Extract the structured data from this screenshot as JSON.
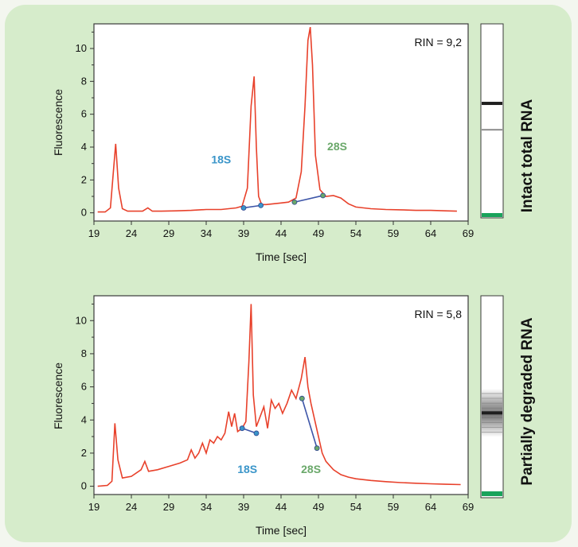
{
  "chart_data": [
    {
      "type": "line",
      "rin_label": "RIN = 9,2",
      "side_label": "Intact total RNA",
      "xlabel": "Time [sec]",
      "ylabel": "Fluorescence",
      "xlim": [
        19,
        69
      ],
      "ylim": [
        -0.5,
        11.5
      ],
      "xticks": [
        19,
        24,
        29,
        34,
        39,
        44,
        49,
        54,
        59,
        64,
        69
      ],
      "yticks": [
        0,
        2,
        4,
        6,
        8,
        10
      ],
      "line_color": "#e8412b",
      "series": [
        {
          "x": [
            19.5,
            20.5,
            21.2,
            21.6,
            21.9,
            22.3,
            22.8,
            23.5,
            24.5,
            25.5,
            26.2,
            26.8,
            28,
            30,
            32,
            34,
            36,
            37,
            38,
            38.8,
            39.5,
            40,
            40.4,
            40.7,
            41,
            41.4,
            42,
            43,
            44,
            45,
            46,
            46.7,
            47.2,
            47.6,
            47.9,
            48.2,
            48.6,
            49.2,
            50,
            51,
            52,
            53,
            54,
            56,
            58,
            60,
            62,
            64,
            66,
            67.5
          ],
          "y": [
            0.05,
            0.05,
            0.3,
            2.5,
            4.2,
            1.5,
            0.25,
            0.1,
            0.1,
            0.1,
            0.3,
            0.1,
            0.1,
            0.12,
            0.15,
            0.2,
            0.2,
            0.25,
            0.3,
            0.4,
            1.5,
            6.5,
            8.3,
            4,
            1,
            0.5,
            0.5,
            0.55,
            0.6,
            0.65,
            0.9,
            2.5,
            6.5,
            10.5,
            11.3,
            9,
            3.5,
            1.4,
            1,
            1.05,
            0.9,
            0.55,
            0.35,
            0.25,
            0.2,
            0.18,
            0.15,
            0.15,
            0.12,
            0.1
          ]
        }
      ],
      "markers": [
        {
          "label": "18S",
          "points": [
            {
              "x": 39.0,
              "y": 0.3
            },
            {
              "x": 41.3,
              "y": 0.45
            }
          ],
          "label_at": {
            "x": 36.0,
            "y": 3.0
          },
          "color": "#3a95c9"
        },
        {
          "label": "28S",
          "points": [
            {
              "x": 45.8,
              "y": 0.65
            },
            {
              "x": 49.6,
              "y": 1.05
            }
          ],
          "label_at": {
            "x": 51.5,
            "y": 3.8
          },
          "color": "#6aa86a"
        }
      ],
      "gel_bands": [
        0.41,
        0.55
      ],
      "gel_band_colors": [
        "#1f1f1f",
        "#8c8c8c"
      ]
    },
    {
      "type": "line",
      "rin_label": "RIN = 5,8",
      "side_label": "Partially degraded RNA",
      "xlabel": "Time [sec]",
      "ylabel": "Fluorescence",
      "xlim": [
        19,
        69
      ],
      "ylim": [
        -0.5,
        11.5
      ],
      "xticks": [
        19,
        24,
        29,
        34,
        39,
        44,
        49,
        54,
        59,
        64,
        69
      ],
      "yticks": [
        0,
        2,
        4,
        6,
        8,
        10
      ],
      "line_color": "#e8412b",
      "series": [
        {
          "x": [
            19.5,
            20.8,
            21.4,
            21.8,
            22.2,
            22.8,
            24,
            25.3,
            25.8,
            26.3,
            27.5,
            29,
            30.5,
            31.5,
            32,
            32.5,
            33,
            33.5,
            34,
            34.5,
            35,
            35.5,
            36,
            36.5,
            37,
            37.4,
            37.8,
            38.2,
            38.8,
            39.3,
            39.7,
            40,
            40.3,
            40.7,
            41.2,
            41.7,
            42.2,
            42.7,
            43.2,
            43.7,
            44.2,
            44.8,
            45.4,
            46,
            46.7,
            47.2,
            47.6,
            48,
            48.5,
            49,
            49.5,
            50,
            51,
            52,
            53,
            54,
            56,
            58,
            60,
            62,
            64,
            66,
            68
          ],
          "y": [
            0,
            0.05,
            0.3,
            3.8,
            1.6,
            0.5,
            0.6,
            1.0,
            1.5,
            0.9,
            1.0,
            1.2,
            1.4,
            1.6,
            2.2,
            1.7,
            2.0,
            2.6,
            2.0,
            2.8,
            2.6,
            3.0,
            2.8,
            3.2,
            4.5,
            3.6,
            4.4,
            3.3,
            3.5,
            3.9,
            7.5,
            11.0,
            5.5,
            3.6,
            4.2,
            4.8,
            3.5,
            5.2,
            4.7,
            5.0,
            4.4,
            5.0,
            5.8,
            5.3,
            6.5,
            7.8,
            6.0,
            5.0,
            4.0,
            3.0,
            2.0,
            1.5,
            1.0,
            0.7,
            0.55,
            0.45,
            0.35,
            0.28,
            0.22,
            0.18,
            0.15,
            0.12,
            0.1
          ]
        }
      ],
      "markers": [
        {
          "label": "18S",
          "points": [
            {
              "x": 38.8,
              "y": 3.5
            },
            {
              "x": 40.7,
              "y": 3.2
            }
          ],
          "label_at": {
            "x": 39.5,
            "y": 0.8
          },
          "color": "#3a95c9"
        },
        {
          "label": "28S",
          "points": [
            {
              "x": 46.8,
              "y": 5.3
            },
            {
              "x": 48.8,
              "y": 2.3
            }
          ],
          "label_at": {
            "x": 48.0,
            "y": 0.8
          },
          "color": "#6aa86a"
        }
      ],
      "gel_bands": [
        0.58
      ],
      "gel_band_colors": [
        "#1f1f1f"
      ],
      "gel_smear": [
        0.46,
        0.7
      ]
    }
  ]
}
